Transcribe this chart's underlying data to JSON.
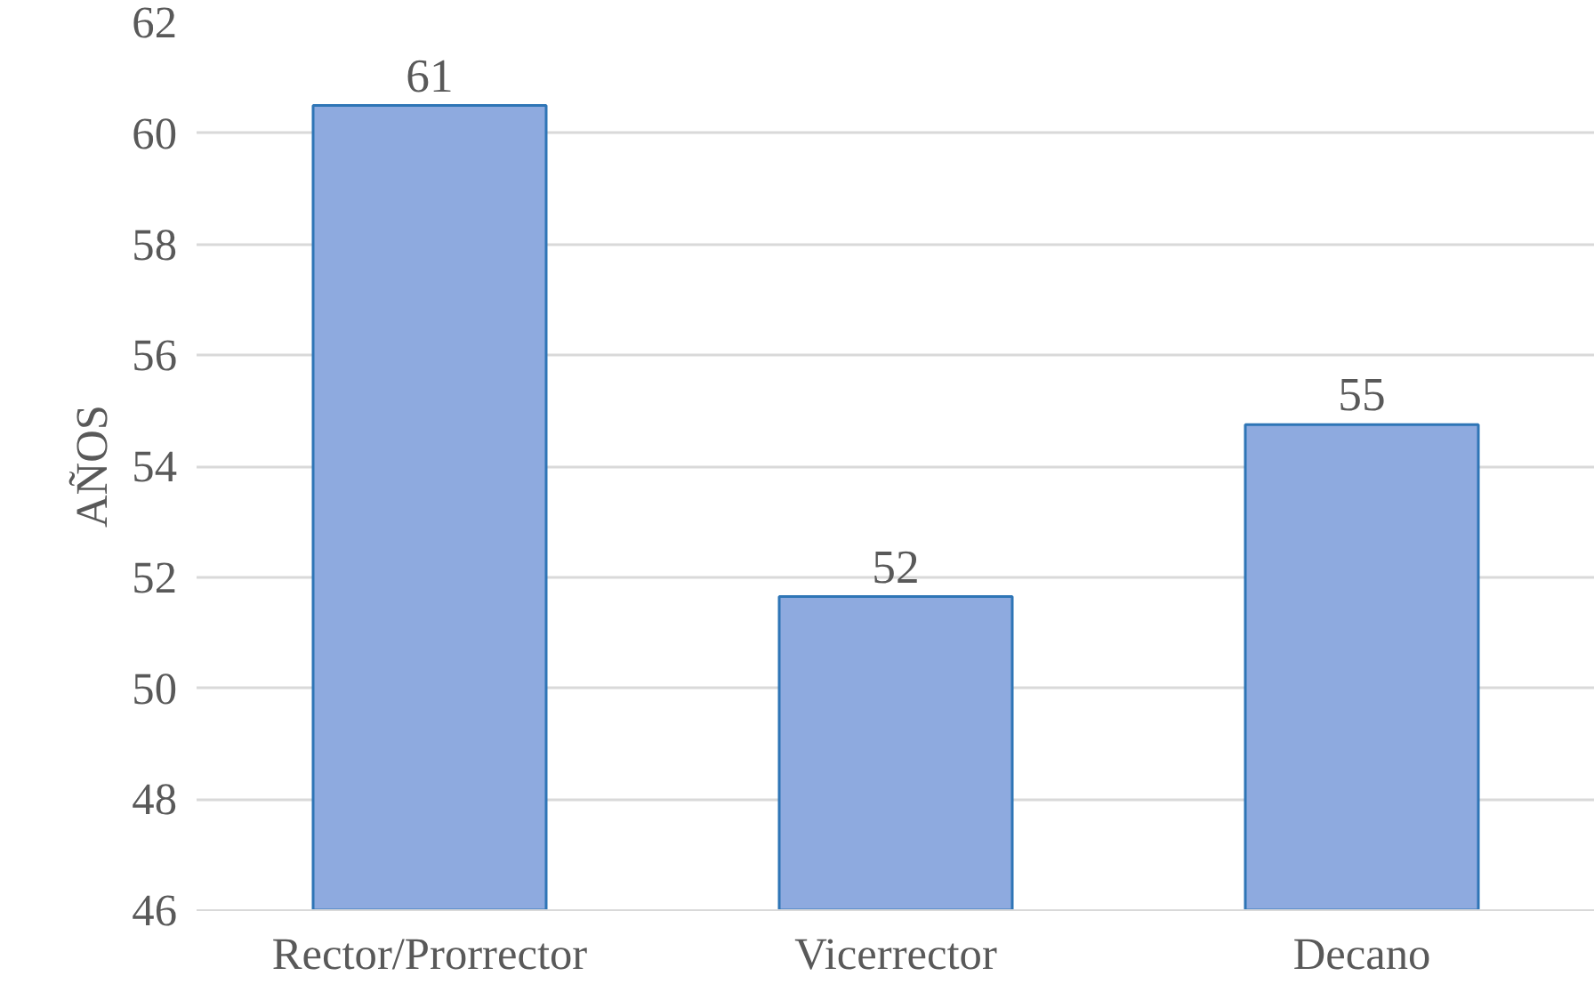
{
  "chart_data": {
    "type": "bar",
    "ylabel": "AÑOS",
    "categories": [
      "Rector/Prorrector",
      "Vicerrector",
      "Decano"
    ],
    "values": [
      60.5,
      51.65,
      54.75
    ],
    "value_labels": [
      "61",
      "52",
      "55"
    ],
    "color": "#8eaadf",
    "ylim": [
      46,
      62
    ],
    "yticks": [
      46,
      48,
      50,
      52,
      54,
      56,
      58,
      60,
      62
    ],
    "grid": "y"
  }
}
